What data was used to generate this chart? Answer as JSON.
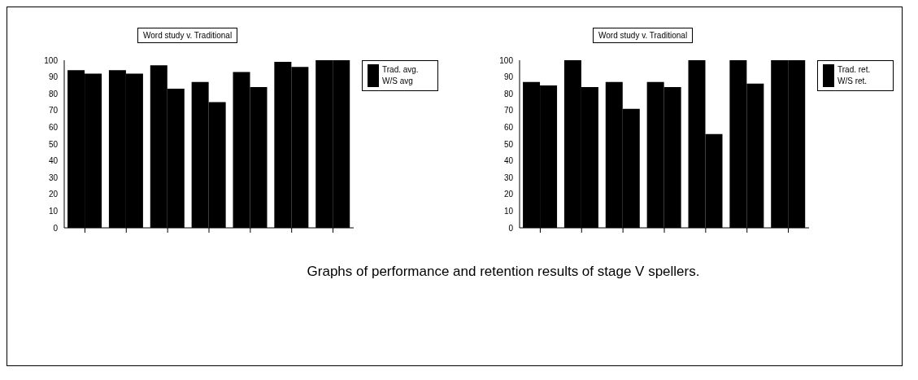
{
  "chart_data": [
    {
      "type": "bar",
      "title": "Word study v. Traditional",
      "categories": [
        null,
        null,
        null,
        null,
        null,
        null,
        null
      ],
      "series": [
        {
          "name": "Trad. avg.",
          "color": "#000000",
          "values": [
            94,
            94,
            97,
            87,
            93,
            99,
            100
          ]
        },
        {
          "name": "W/S avg",
          "color": "#000000",
          "values": [
            92,
            92,
            83,
            75,
            84,
            96,
            100
          ]
        }
      ],
      "ylim": [
        0,
        100
      ],
      "yticks": [
        0,
        10,
        20,
        30,
        40,
        50,
        60,
        70,
        80,
        90,
        100
      ],
      "grid": false,
      "legend": "top right",
      "annotations": [
        "Graphs of performance and retention results of stage V spellers."
      ]
    },
    {
      "type": "bar",
      "title": "Word study v. Traditional",
      "categories": [
        null,
        null,
        null,
        null,
        null,
        null,
        null
      ],
      "series": [
        {
          "name": "Trad. ret.",
          "color": "#000000",
          "values": [
            87,
            100,
            87,
            87,
            100,
            100,
            100
          ]
        },
        {
          "name": "W/S ret.",
          "color": "#000000",
          "values": [
            85,
            84,
            71,
            84,
            56,
            86,
            100
          ]
        }
      ],
      "ylim": [
        0,
        100
      ],
      "yticks": [
        0,
        10,
        20,
        30,
        40,
        50,
        60,
        70,
        80,
        90,
        100
      ],
      "grid": false,
      "legend": "top right"
    }
  ]
}
